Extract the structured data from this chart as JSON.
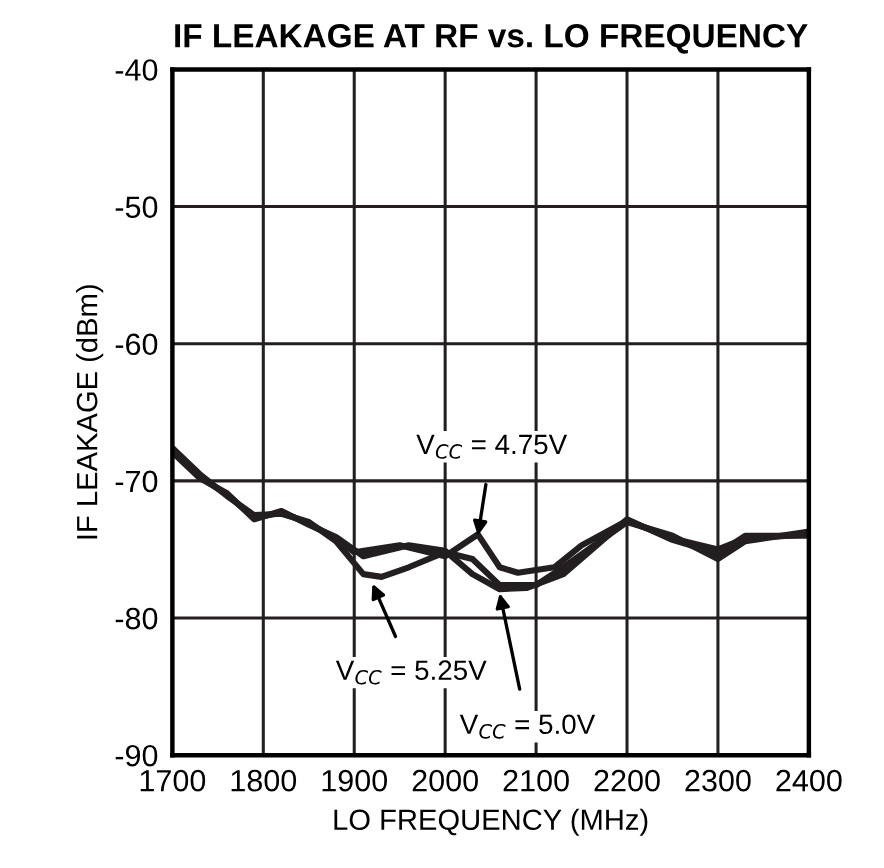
{
  "chart_data": {
    "type": "line",
    "title": "IF LEAKAGE AT RF vs. LO FREQUENCY",
    "xlabel": "LO FREQUENCY (MHz)",
    "ylabel": "IF LEAKAGE (dBm)",
    "xlim": [
      1700,
      2400
    ],
    "xticks": [
      1700,
      1800,
      1900,
      2000,
      2100,
      2200,
      2300,
      2400
    ],
    "ylim": [
      -90,
      -40
    ],
    "yticks": [
      -90,
      -80,
      -70,
      -60,
      -50,
      -40
    ],
    "grid": true,
    "series": [
      {
        "color": "#231f20",
        "x": [
          1700,
          1730,
          1760,
          1790,
          1820,
          1850,
          1880,
          1900,
          1950,
          2000,
          2036,
          2060,
          2080,
          2120,
          2150,
          2200,
          2250,
          2300,
          2330,
          2400
        ],
        "values": [
          -67.8,
          -69.7,
          -71,
          -72.7,
          -72.3,
          -73.1,
          -74.2,
          -75.2,
          -74.7,
          -75.5,
          -73.9,
          -76.3,
          -76.7,
          -76.3,
          -74.7,
          -72.9,
          -74.2,
          -75.0,
          -74.2,
          -73.9
        ]
      },
      {
        "color": "#231f20",
        "x": [
          1700,
          1730,
          1760,
          1790,
          1820,
          1850,
          1880,
          1910,
          1930,
          1960,
          2000,
          2030,
          2060,
          2100,
          2130,
          2200,
          2250,
          2300,
          2330,
          2400
        ],
        "values": [
          -67.6,
          -69.5,
          -71.1,
          -72.5,
          -72.4,
          -73.0,
          -74.4,
          -76.8,
          -77,
          -76.3,
          -75.2,
          -75.7,
          -77.6,
          -77.6,
          -76.3,
          -73.0,
          -74.0,
          -75.7,
          -74.4,
          -73.7
        ]
      },
      {
        "color": "#231f20",
        "x": [
          1700,
          1730,
          1760,
          1790,
          1820,
          1850,
          1880,
          1910,
          1960,
          2000,
          2030,
          2060,
          2090,
          2130,
          2200,
          2250,
          2300,
          2330,
          2400
        ],
        "values": [
          -67.9,
          -69.8,
          -70.9,
          -72.8,
          -72.2,
          -73.2,
          -74.1,
          -75.5,
          -74.7,
          -75.1,
          -76.8,
          -77.9,
          -77.8,
          -76.8,
          -72.8,
          -74.3,
          -75.3,
          -74.0,
          -74.0
        ]
      }
    ],
    "annotations": [
      {
        "text": "V$_{CC}$ = 4.75V",
        "x": 2036,
        "y": -74
      },
      {
        "text": "V$_{CC}$ = 5.25V",
        "x": 1920,
        "y": -77.5
      },
      {
        "text": "V$_{CC}$ = 5.0V",
        "x": 2060,
        "y": -78.2
      }
    ]
  }
}
